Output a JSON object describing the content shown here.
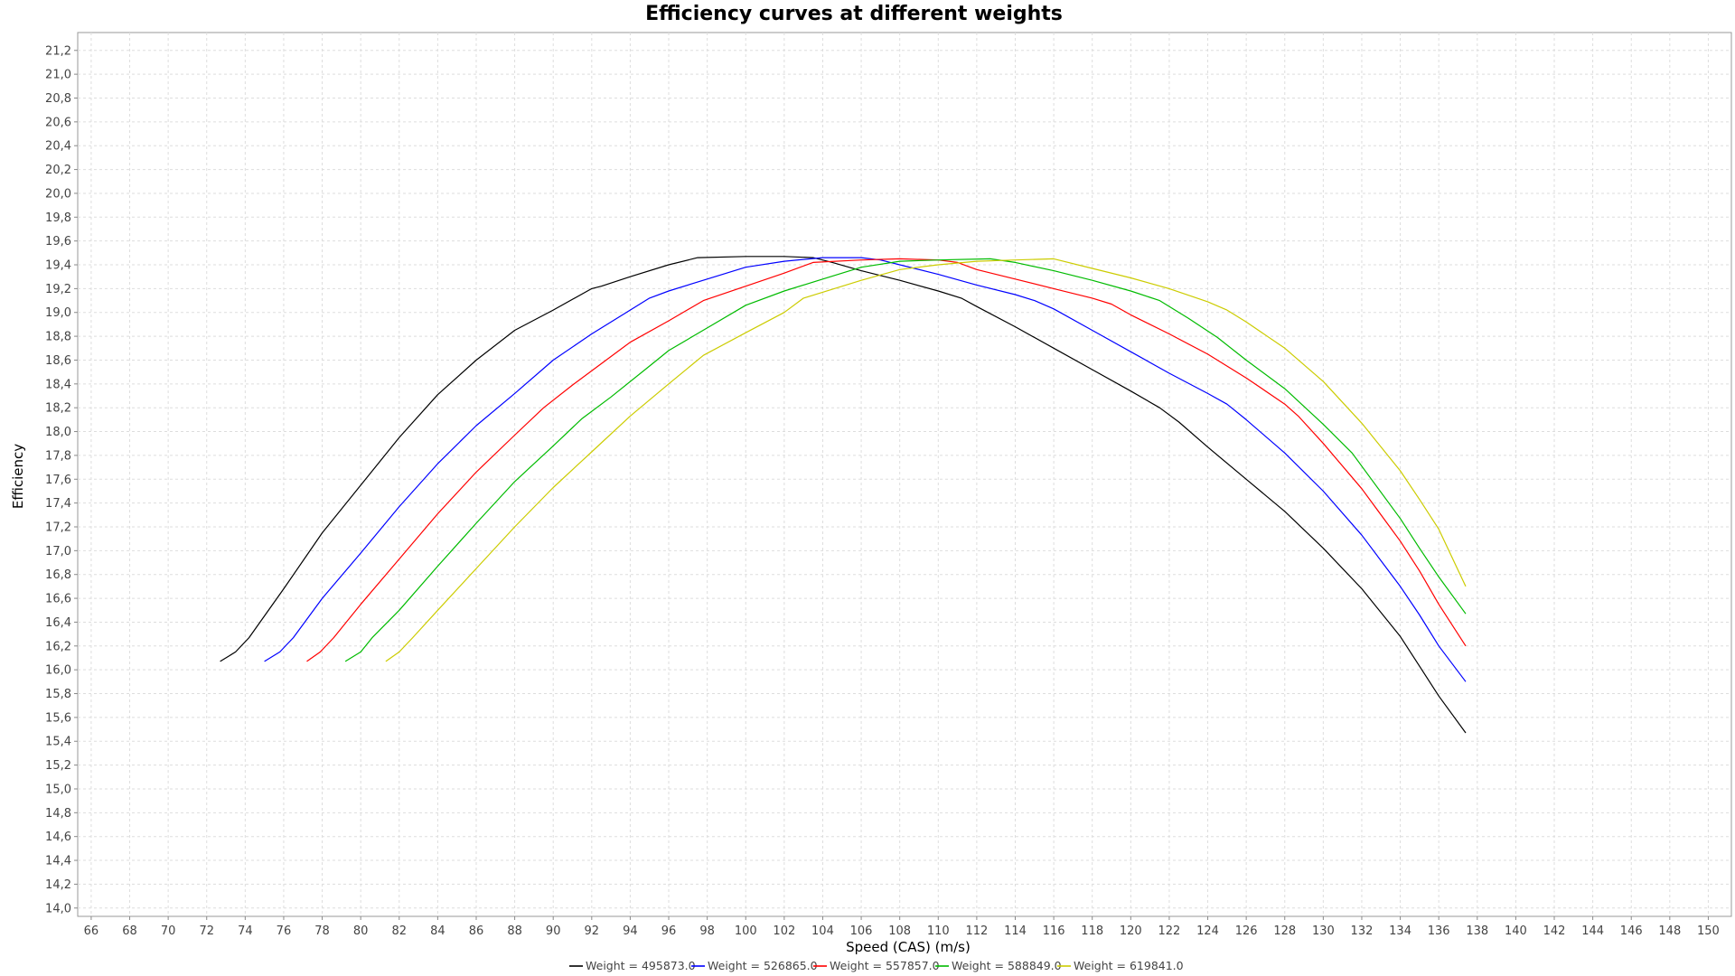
{
  "chart_data": {
    "type": "line",
    "title": "Efficiency curves at different weights",
    "xlabel": "Speed (CAS) (m/s)",
    "ylabel": "Efficiency",
    "xlim": [
      65.3,
      151.2
    ],
    "ylim": [
      13.93,
      21.35
    ],
    "x_ticks": [
      66,
      68,
      70,
      72,
      74,
      76,
      78,
      80,
      82,
      84,
      86,
      88,
      90,
      92,
      94,
      96,
      98,
      100,
      102,
      104,
      106,
      108,
      110,
      112,
      114,
      116,
      118,
      120,
      122,
      124,
      126,
      128,
      130,
      132,
      134,
      136,
      138,
      140,
      142,
      144,
      146,
      148,
      150
    ],
    "y_ticks": [
      14.0,
      14.2,
      14.4,
      14.6,
      14.8,
      15.0,
      15.2,
      15.4,
      15.6,
      15.8,
      16.0,
      16.2,
      16.4,
      16.6,
      16.8,
      17.0,
      17.2,
      17.4,
      17.6,
      17.8,
      18.0,
      18.2,
      18.4,
      18.6,
      18.8,
      19.0,
      19.2,
      19.4,
      19.6,
      19.8,
      20.0,
      20.2,
      20.4,
      20.6,
      20.8,
      21.0,
      21.2
    ],
    "decimal_separator": ",",
    "grid": true,
    "legend_position": "bottom",
    "series": [
      {
        "name": "Weight = 495873.0",
        "color": "#000000",
        "x": [
          72.7,
          73.5,
          74.2,
          76.0,
          78.0,
          80.0,
          82.0,
          84.0,
          86.0,
          88.0,
          90.0,
          92.0,
          92.5,
          94.0,
          96.0,
          97.5,
          100.0,
          102.0,
          103.5,
          104.5,
          106.0,
          108.0,
          110.0,
          111.2,
          112.0,
          114.0,
          116.0,
          118.0,
          120.0,
          121.5,
          122.5,
          124.0,
          126.0,
          128.0,
          130.0,
          132.0,
          134.0,
          135.0,
          136.0,
          137.4
        ],
        "y": [
          16.07,
          16.15,
          16.27,
          16.68,
          17.15,
          17.55,
          17.95,
          18.31,
          18.6,
          18.85,
          19.02,
          19.2,
          19.22,
          19.3,
          19.4,
          19.46,
          19.47,
          19.47,
          19.46,
          19.42,
          19.35,
          19.27,
          19.18,
          19.12,
          19.05,
          18.88,
          18.7,
          18.52,
          18.34,
          18.2,
          18.08,
          17.87,
          17.6,
          17.33,
          17.02,
          16.68,
          16.28,
          16.03,
          15.78,
          15.47
        ]
      },
      {
        "name": "Weight = 526865.0",
        "color": "#0000ff",
        "x": [
          75.0,
          75.8,
          76.5,
          78.0,
          80.0,
          82.0,
          84.0,
          86.0,
          88.0,
          90.0,
          92.0,
          94.0,
          95.0,
          96.0,
          98.0,
          100.0,
          102.0,
          104.0,
          106.0,
          107.0,
          108.0,
          110.0,
          112.0,
          114.0,
          115.0,
          116.0,
          118.0,
          120.0,
          122.0,
          124.0,
          125.0,
          126.0,
          128.0,
          130.0,
          132.0,
          134.0,
          135.0,
          136.0,
          137.4
        ],
        "y": [
          16.07,
          16.15,
          16.27,
          16.6,
          16.98,
          17.37,
          17.73,
          18.05,
          18.32,
          18.6,
          18.82,
          19.02,
          19.12,
          19.18,
          19.28,
          19.38,
          19.43,
          19.46,
          19.46,
          19.44,
          19.4,
          19.32,
          19.23,
          19.15,
          19.1,
          19.03,
          18.85,
          18.67,
          18.49,
          18.32,
          18.23,
          18.1,
          17.82,
          17.5,
          17.13,
          16.7,
          16.46,
          16.2,
          15.9
        ]
      },
      {
        "name": "Weight = 557857.0",
        "color": "#ff0000",
        "x": [
          77.2,
          77.9,
          78.6,
          80.0,
          82.0,
          84.0,
          86.0,
          88.0,
          89.5,
          91.0,
          92.5,
          94.0,
          96.0,
          97.8,
          100.0,
          102.0,
          103.5,
          106.0,
          108.0,
          110.0,
          111.0,
          112.0,
          114.0,
          116.0,
          118.0,
          119.0,
          120.0,
          122.0,
          124.0,
          126.0,
          128.0,
          128.7,
          130.0,
          132.0,
          134.0,
          135.0,
          136.0,
          137.4
        ],
        "y": [
          16.07,
          16.15,
          16.27,
          16.55,
          16.93,
          17.31,
          17.66,
          17.97,
          18.2,
          18.39,
          18.57,
          18.75,
          18.93,
          19.1,
          19.22,
          19.33,
          19.42,
          19.44,
          19.45,
          19.44,
          19.42,
          19.36,
          19.28,
          19.2,
          19.12,
          19.07,
          18.98,
          18.82,
          18.65,
          18.45,
          18.23,
          18.13,
          17.9,
          17.52,
          17.08,
          16.83,
          16.55,
          16.2
        ]
      },
      {
        "name": "Weight = 588849.0",
        "color": "#00bb00",
        "x": [
          79.2,
          80.0,
          80.6,
          82.0,
          84.0,
          86.0,
          88.0,
          90.0,
          91.5,
          93.0,
          95.0,
          96.0,
          98.0,
          100.0,
          102.0,
          104.0,
          106.0,
          108.0,
          110.0,
          112.7,
          114.0,
          116.0,
          118.0,
          120.0,
          121.5,
          123.0,
          124.5,
          126.0,
          128.0,
          130.0,
          131.5,
          132.5,
          134.0,
          135.0,
          136.0,
          137.4
        ],
        "y": [
          16.07,
          16.15,
          16.27,
          16.5,
          16.87,
          17.23,
          17.58,
          17.88,
          18.11,
          18.29,
          18.55,
          18.68,
          18.87,
          19.06,
          19.18,
          19.28,
          19.38,
          19.43,
          19.44,
          19.45,
          19.42,
          19.35,
          19.27,
          19.18,
          19.1,
          18.95,
          18.79,
          18.6,
          18.36,
          18.06,
          17.82,
          17.6,
          17.27,
          17.02,
          16.78,
          16.47
        ]
      },
      {
        "name": "Weight = 619841.0",
        "color": "#cccc00",
        "x": [
          81.3,
          82.0,
          82.7,
          84.0,
          86.0,
          88.0,
          90.0,
          92.0,
          94.0,
          96.0,
          97.8,
          100.0,
          102.0,
          103.0,
          106.0,
          108.0,
          110.0,
          112.0,
          114.0,
          116.0,
          118.0,
          120.0,
          122.0,
          124.0,
          125.0,
          126.0,
          128.0,
          130.0,
          132.0,
          134.0,
          135.0,
          136.0,
          137.4
        ],
        "y": [
          16.07,
          16.15,
          16.27,
          16.5,
          16.85,
          17.2,
          17.53,
          17.83,
          18.13,
          18.4,
          18.64,
          18.83,
          19.0,
          19.12,
          19.27,
          19.36,
          19.4,
          19.43,
          19.44,
          19.45,
          19.37,
          19.29,
          19.2,
          19.09,
          19.02,
          18.92,
          18.7,
          18.42,
          18.07,
          17.67,
          17.43,
          17.18,
          16.7
        ]
      }
    ]
  }
}
